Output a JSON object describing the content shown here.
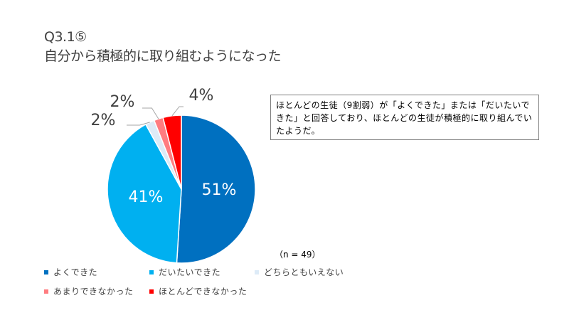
{
  "slide": {
    "title_id": "Q3.1⑤",
    "title_main": "自分から積極的に取り組むようになった",
    "note": "ほとんどの生徒（9割弱）が「よくできた」または「だいたいできた」と回答しており、ほとんどの生徒が積極的に取り組んでいたようだ。",
    "sample_size": "（n = 49）"
  },
  "chart_data": {
    "type": "pie",
    "title": "",
    "sample_size": "（n = 49）",
    "start_angle_deg": 0,
    "direction": "clockwise",
    "slices": [
      {
        "label": "よくできた",
        "value": 51,
        "display": "51%",
        "color": "#0070C0",
        "label_placement": "inside",
        "label_color": "#ffffff"
      },
      {
        "label": "だいたいできた",
        "value": 41,
        "display": "41%",
        "color": "#00B0F0",
        "label_placement": "inside",
        "label_color": "#ffffff"
      },
      {
        "label": "どちらともいえない",
        "value": 2,
        "display": "2%",
        "color": "#DDEBF7",
        "label_placement": "outside",
        "label_color": "#404040"
      },
      {
        "label": "あまりできなかった",
        "value": 2,
        "display": "2%",
        "color": "#FF7C80",
        "label_placement": "outside",
        "label_color": "#404040"
      },
      {
        "label": "ほとんどできなかった",
        "value": 4,
        "display": "4%",
        "color": "#FF0000",
        "label_placement": "outside",
        "label_color": "#404040"
      }
    ],
    "legend": {
      "placement": "bottom-left",
      "items": [
        "よくできた",
        "だいたいできた",
        "どちらともいえない",
        "あまりできなかった",
        "ほとんどできなかった"
      ]
    }
  }
}
